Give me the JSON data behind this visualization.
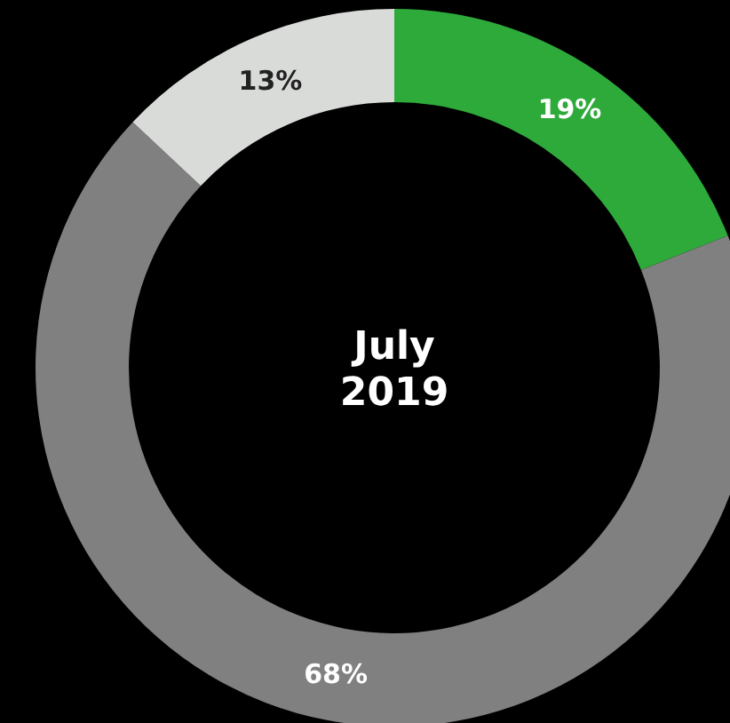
{
  "chart_data": {
    "type": "donut",
    "title": "July 2019",
    "categories": [
      null,
      null,
      null
    ],
    "values": [
      19,
      68,
      13
    ],
    "colors": [
      "#2eaa3a",
      "#808080",
      "#d9dbd9"
    ],
    "value_labels": [
      "19%",
      "68%",
      "13%"
    ]
  }
}
